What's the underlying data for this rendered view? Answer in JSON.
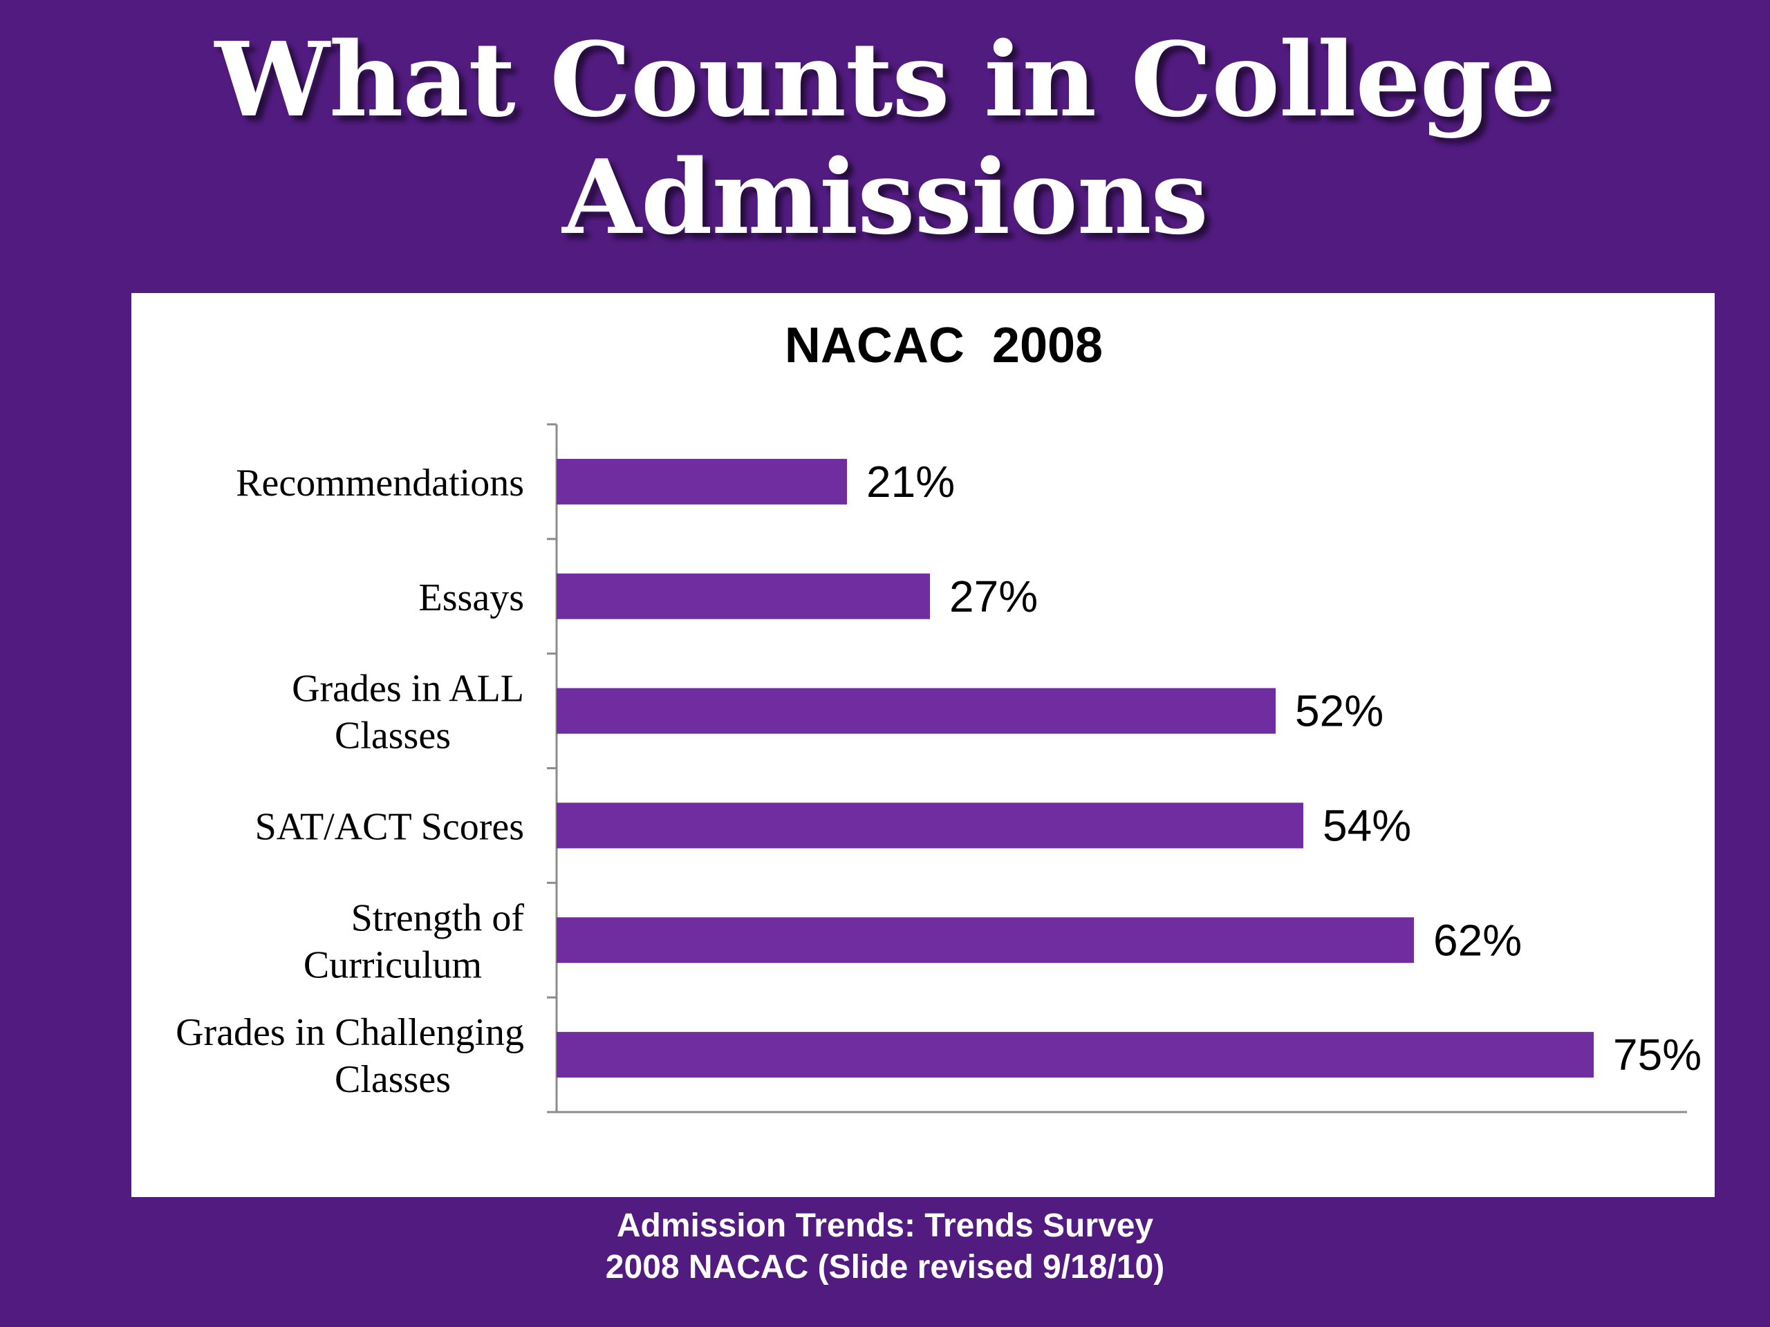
{
  "slide": {
    "title_line1": "What Counts in College",
    "title_line2": "Admissions",
    "source_line1": "Admission Trends: Trends Survey",
    "source_line2": "2008 NACAC (Slide revised 9/18/10)"
  },
  "colors": {
    "background": "#521b80",
    "bar": "#6f2da0",
    "panel": "#ffffff"
  },
  "chart_data": {
    "type": "bar",
    "orientation": "horizontal",
    "title": "NACAC  2008",
    "categories": [
      [
        "Recommendations"
      ],
      [
        "Essays"
      ],
      [
        "Grades in ALL",
        "Classes"
      ],
      [
        "SAT/ACT Scores"
      ],
      [
        "Strength of",
        "Curriculum"
      ],
      [
        "Grades in Challenging",
        "Classes"
      ]
    ],
    "values": [
      21,
      27,
      52,
      54,
      62,
      75
    ],
    "data_labels": [
      "21%",
      "27%",
      "52%",
      "54%",
      "62%",
      "75%"
    ],
    "unit": "%",
    "xlim": [
      0,
      100
    ],
    "grid": false,
    "legend": "none"
  }
}
